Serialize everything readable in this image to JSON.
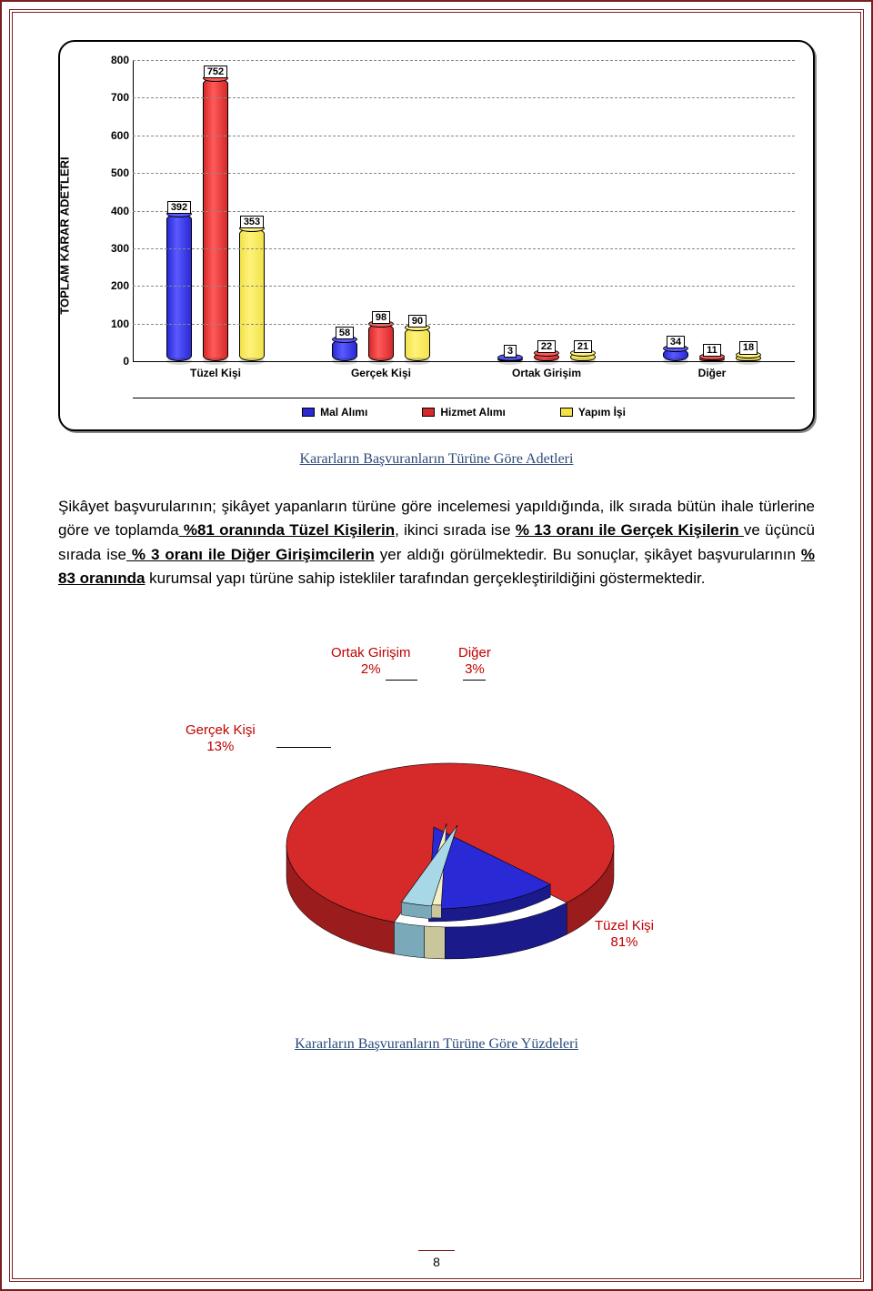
{
  "bar_chart": {
    "type": "3d-grouped-bar",
    "y_axis_label": "TOPLAM KARAR ADETLERİ",
    "y_ticks": [
      0,
      100,
      200,
      300,
      400,
      500,
      600,
      700,
      800
    ],
    "y_max": 800,
    "categories": [
      "Tüzel Kişi",
      "Gerçek Kişi",
      "Ortak Girişim",
      "Diğer"
    ],
    "series": [
      {
        "name": "Mal Alımı",
        "color": "#2929d6",
        "top_color": "#5a5aff",
        "values": [
          392,
          58,
          3,
          34
        ]
      },
      {
        "name": "Hizmet Alımı",
        "color": "#d62929",
        "top_color": "#ff5a5a",
        "values": [
          752,
          98,
          22,
          11
        ]
      },
      {
        "name": "Yapım İşi",
        "color": "#f2e24a",
        "top_color": "#fff27a",
        "values": [
          353,
          90,
          21,
          18
        ]
      }
    ],
    "grid_color": "#888888",
    "axis_color": "#000000",
    "label_box_border": "#000000",
    "label_fontsize": 11,
    "tick_fontsize": 12,
    "caption": "Kararların Başvuranların Türüne Göre Adetleri"
  },
  "paragraph": {
    "prefix": "Şikâyet başvurularının; şikâyet yapanların türüne göre incelemesi yapıldığında, ilk sırada bütün ihale türlerine göre ve toplamda",
    "b1": " %81 oranında Tüzel Kişilerin",
    "mid1": ", ikinci sırada ise ",
    "b2": "% 13 oranı ile Gerçek Kişilerin ",
    "mid2": "ve üçüncü sırada ise",
    "b3": " % 3 oranı ile Diğer Girişimcilerin",
    "mid3": " yer aldığı görülmektedir. Bu sonuçlar, şikâyet başvurularının ",
    "b4": "% 83 oranında",
    "suffix": "  kurumsal yapı türüne sahip istekliler tarafından gerçekleştirildiğini göstermektedir."
  },
  "pie_chart": {
    "type": "3d-pie",
    "slices": [
      {
        "label": "Tüzel Kişi",
        "pct_label": "81%",
        "value": 81,
        "color": "#d62929",
        "side_color": "#9a1c1c"
      },
      {
        "label": "Gerçek Kişi",
        "pct_label": "13%",
        "value": 13,
        "color": "#2929d6",
        "side_color": "#1a1a8a"
      },
      {
        "label": "Ortak Girişim",
        "pct_label": "2%",
        "value": 2,
        "color": "#f2f0c4",
        "side_color": "#c8c69a"
      },
      {
        "label": "Diğer",
        "pct_label": "3%",
        "value": 3,
        "color": "#a8d8e8",
        "side_color": "#7aaaba"
      }
    ],
    "label_color": "#c00000",
    "label_fontsize": 15,
    "caption": "Kararların Başvuranların Türüne Göre Yüzdeleri"
  },
  "page_number": "8"
}
